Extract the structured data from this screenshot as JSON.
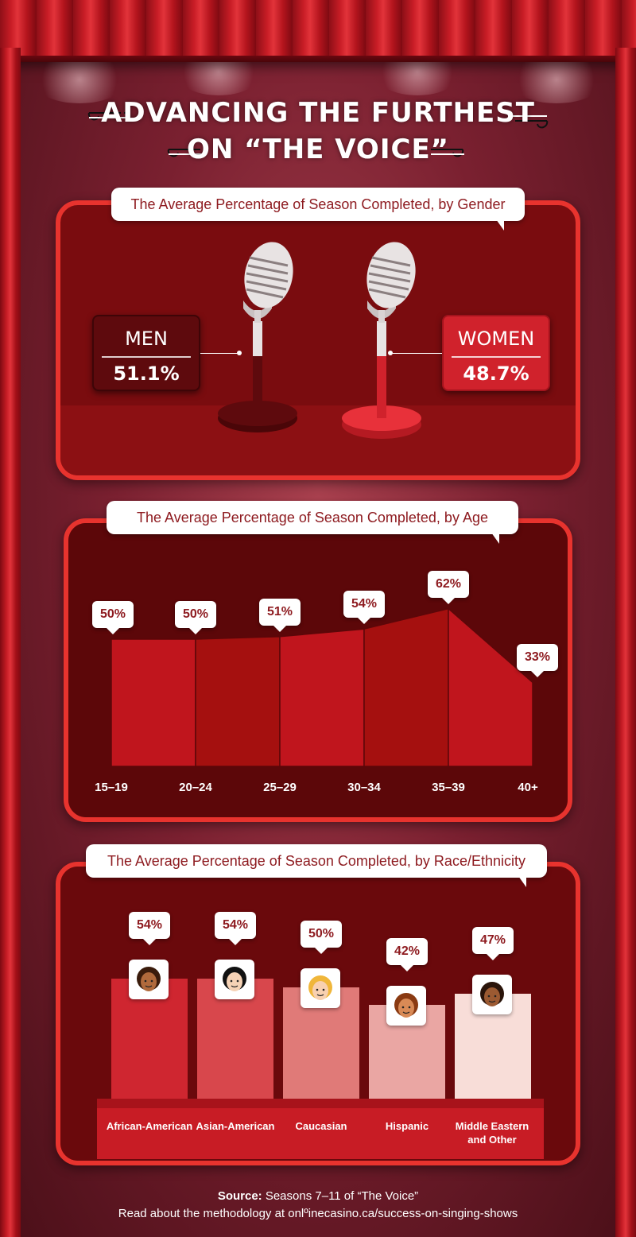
{
  "title": {
    "line1": "ADVANCING THE FURTHEST",
    "line2": "ON “THE VOICE”"
  },
  "colors": {
    "panel_border": "#e8332e",
    "panel_bg": "#7a0c0f",
    "men_box": "#5e0a0d",
    "women_box": "#d0222c"
  },
  "chart_data": [
    {
      "type": "bar",
      "title": "The Average Percentage of Season Completed, by Gender",
      "categories": [
        "MEN",
        "WOMEN"
      ],
      "values": [
        51.1,
        48.7
      ],
      "value_labels": [
        "51.1%",
        "48.7%"
      ],
      "icons": [
        "microphone-icon",
        "microphone-icon"
      ]
    },
    {
      "type": "area",
      "title": "The Average Percentage of Season Completed, by Age",
      "categories": [
        "15–19",
        "20–24",
        "25–29",
        "30–34",
        "35–39",
        "40+"
      ],
      "values": [
        50,
        50,
        51,
        54,
        62,
        33
      ],
      "value_labels": [
        "50%",
        "50%",
        "51%",
        "54%",
        "62%",
        "33%"
      ],
      "ylim": [
        0,
        100
      ],
      "grid": false
    },
    {
      "type": "bar",
      "title": "The Average Percentage of Season Completed, by Race/Ethnicity",
      "categories": [
        "African-American",
        "Asian-American",
        "Caucasian",
        "Hispanic",
        "Middle Eastern and Other"
      ],
      "values": [
        54,
        54,
        50,
        42,
        47
      ],
      "value_labels": [
        "54%",
        "54%",
        "50%",
        "42%",
        "47%"
      ],
      "bar_colors": [
        "#cf2630",
        "#d8474c",
        "#e07a78",
        "#eaa6a3",
        "#f8ddd8"
      ],
      "icons": [
        "face-curly-hair-icon",
        "face-black-hair-icon",
        "face-blond-hair-icon",
        "face-female-icon",
        "face-beard-icon"
      ],
      "ylim": [
        0,
        100
      ],
      "grid": false
    }
  ],
  "source": {
    "label": "Source:",
    "text": " Seasons 7–11 of “The Voice”",
    "line2": "Read about the methodology at onlºinecasino.ca/success-on-singing-shows"
  }
}
